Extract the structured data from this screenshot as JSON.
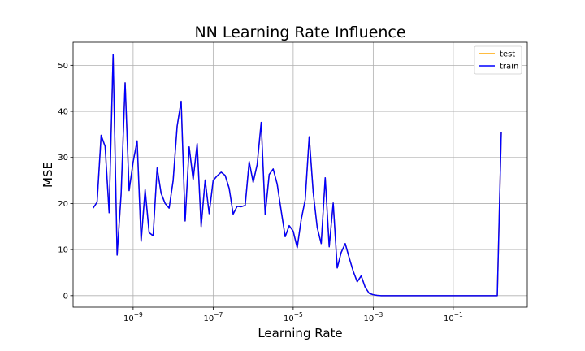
{
  "chart_data": {
    "type": "line",
    "title": "NN Learning Rate Influence",
    "xlabel": "Learning Rate",
    "ylabel": "MSE",
    "xscale": "log",
    "xlim_log10": [
      -10.5,
      0.85
    ],
    "ylim": [
      -2.5,
      55
    ],
    "grid": true,
    "legend_position": "top-right",
    "xticks": [
      {
        "value": -9,
        "base": "10",
        "exp": "−9"
      },
      {
        "value": -7,
        "base": "10",
        "exp": "−7"
      },
      {
        "value": -5,
        "base": "10",
        "exp": "−5"
      },
      {
        "value": -3,
        "base": "10",
        "exp": "−3"
      },
      {
        "value": -1,
        "base": "10",
        "exp": "−1"
      }
    ],
    "yticks": [
      0,
      10,
      20,
      30,
      40,
      50
    ],
    "series": [
      {
        "name": "test",
        "color": "#ffa500",
        "x_log10": [
          -10.0,
          -9.9,
          -9.8,
          -9.7,
          -9.6,
          -9.5,
          -9.4,
          -9.3,
          -9.2,
          -9.1,
          -9.0,
          -8.9,
          -8.8,
          -8.7,
          -8.6,
          -8.5,
          -8.4,
          -8.3,
          -8.2,
          -8.1,
          -8.0,
          -7.9,
          -7.8,
          -7.7,
          -7.6,
          -7.5,
          -7.4,
          -7.3,
          -7.2,
          -7.1,
          -7.0,
          -6.9,
          -6.8,
          -6.7,
          -6.6,
          -6.5,
          -6.4,
          -6.3,
          -6.2,
          -6.1,
          -6.0,
          -5.9,
          -5.8,
          -5.7,
          -5.6,
          -5.5,
          -5.4,
          -5.3,
          -5.2,
          -5.1,
          -5.0,
          -4.9,
          -4.8,
          -4.7,
          -4.6,
          -4.5,
          -4.4,
          -4.3,
          -4.2,
          -4.1,
          -4.0,
          -3.9,
          -3.8,
          -3.7,
          -3.6,
          -3.5,
          -3.4,
          -3.3,
          -3.2,
          -3.1,
          -3.0,
          -2.9,
          -2.8,
          -2.7,
          -2.6,
          -2.4,
          -2.0,
          -1.5,
          -1.0,
          -0.5,
          0.0,
          0.1,
          0.2
        ],
        "y": [
          19.0,
          20.3,
          34.8,
          32.4,
          18.0,
          52.3,
          8.8,
          22.0,
          46.2,
          22.8,
          29.0,
          33.6,
          11.8,
          23.0,
          13.7,
          13.0,
          27.7,
          22.2,
          20.0,
          19.0,
          25.0,
          36.8,
          42.2,
          16.2,
          32.3,
          25.2,
          33.0,
          15.0,
          25.1,
          17.8,
          25.0,
          26.0,
          26.8,
          26.1,
          23.3,
          17.7,
          19.4,
          19.3,
          19.6,
          29.1,
          24.6,
          28.5,
          37.6,
          17.6,
          26.3,
          27.5,
          24.2,
          18.4,
          12.8,
          15.2,
          14.0,
          10.4,
          16.5,
          20.8,
          34.5,
          22.4,
          14.8,
          11.3,
          25.6,
          10.6,
          20.1,
          6.0,
          9.4,
          11.3,
          8.2,
          5.3,
          3.0,
          4.3,
          1.8,
          0.5,
          0.2,
          0.05,
          0.0,
          0.0,
          0.0,
          0.0,
          0.0,
          0.0,
          0.0,
          0.0,
          0.0,
          0.0,
          35.6
        ]
      },
      {
        "name": "train",
        "color": "#0000ff",
        "x_log10": [
          -10.0,
          -9.9,
          -9.8,
          -9.7,
          -9.6,
          -9.5,
          -9.4,
          -9.3,
          -9.2,
          -9.1,
          -9.0,
          -8.9,
          -8.8,
          -8.7,
          -8.6,
          -8.5,
          -8.4,
          -8.3,
          -8.2,
          -8.1,
          -8.0,
          -7.9,
          -7.8,
          -7.7,
          -7.6,
          -7.5,
          -7.4,
          -7.3,
          -7.2,
          -7.1,
          -7.0,
          -6.9,
          -6.8,
          -6.7,
          -6.6,
          -6.5,
          -6.4,
          -6.3,
          -6.2,
          -6.1,
          -6.0,
          -5.9,
          -5.8,
          -5.7,
          -5.6,
          -5.5,
          -5.4,
          -5.3,
          -5.2,
          -5.1,
          -5.0,
          -4.9,
          -4.8,
          -4.7,
          -4.6,
          -4.5,
          -4.4,
          -4.3,
          -4.2,
          -4.1,
          -4.0,
          -3.9,
          -3.8,
          -3.7,
          -3.6,
          -3.5,
          -3.4,
          -3.3,
          -3.2,
          -3.1,
          -3.0,
          -2.9,
          -2.8,
          -2.7,
          -2.6,
          -2.4,
          -2.0,
          -1.5,
          -1.0,
          -0.5,
          0.0,
          0.1,
          0.2
        ],
        "y": [
          19.0,
          20.3,
          34.8,
          32.4,
          18.0,
          52.3,
          8.8,
          22.0,
          46.2,
          22.8,
          29.0,
          33.6,
          11.8,
          23.0,
          13.7,
          13.0,
          27.7,
          22.2,
          20.0,
          19.0,
          25.0,
          36.8,
          42.2,
          16.2,
          32.3,
          25.2,
          33.0,
          15.0,
          25.1,
          17.8,
          25.0,
          26.0,
          26.8,
          26.1,
          23.3,
          17.7,
          19.4,
          19.3,
          19.6,
          29.1,
          24.6,
          28.5,
          37.6,
          17.6,
          26.3,
          27.5,
          24.2,
          18.4,
          12.8,
          15.2,
          14.0,
          10.4,
          16.5,
          20.8,
          34.5,
          22.4,
          14.8,
          11.3,
          25.6,
          10.6,
          20.1,
          6.0,
          9.4,
          11.3,
          8.2,
          5.3,
          3.0,
          4.3,
          1.8,
          0.5,
          0.2,
          0.05,
          0.0,
          0.0,
          0.0,
          0.0,
          0.0,
          0.0,
          0.0,
          0.0,
          0.0,
          0.0,
          35.6
        ]
      }
    ]
  }
}
